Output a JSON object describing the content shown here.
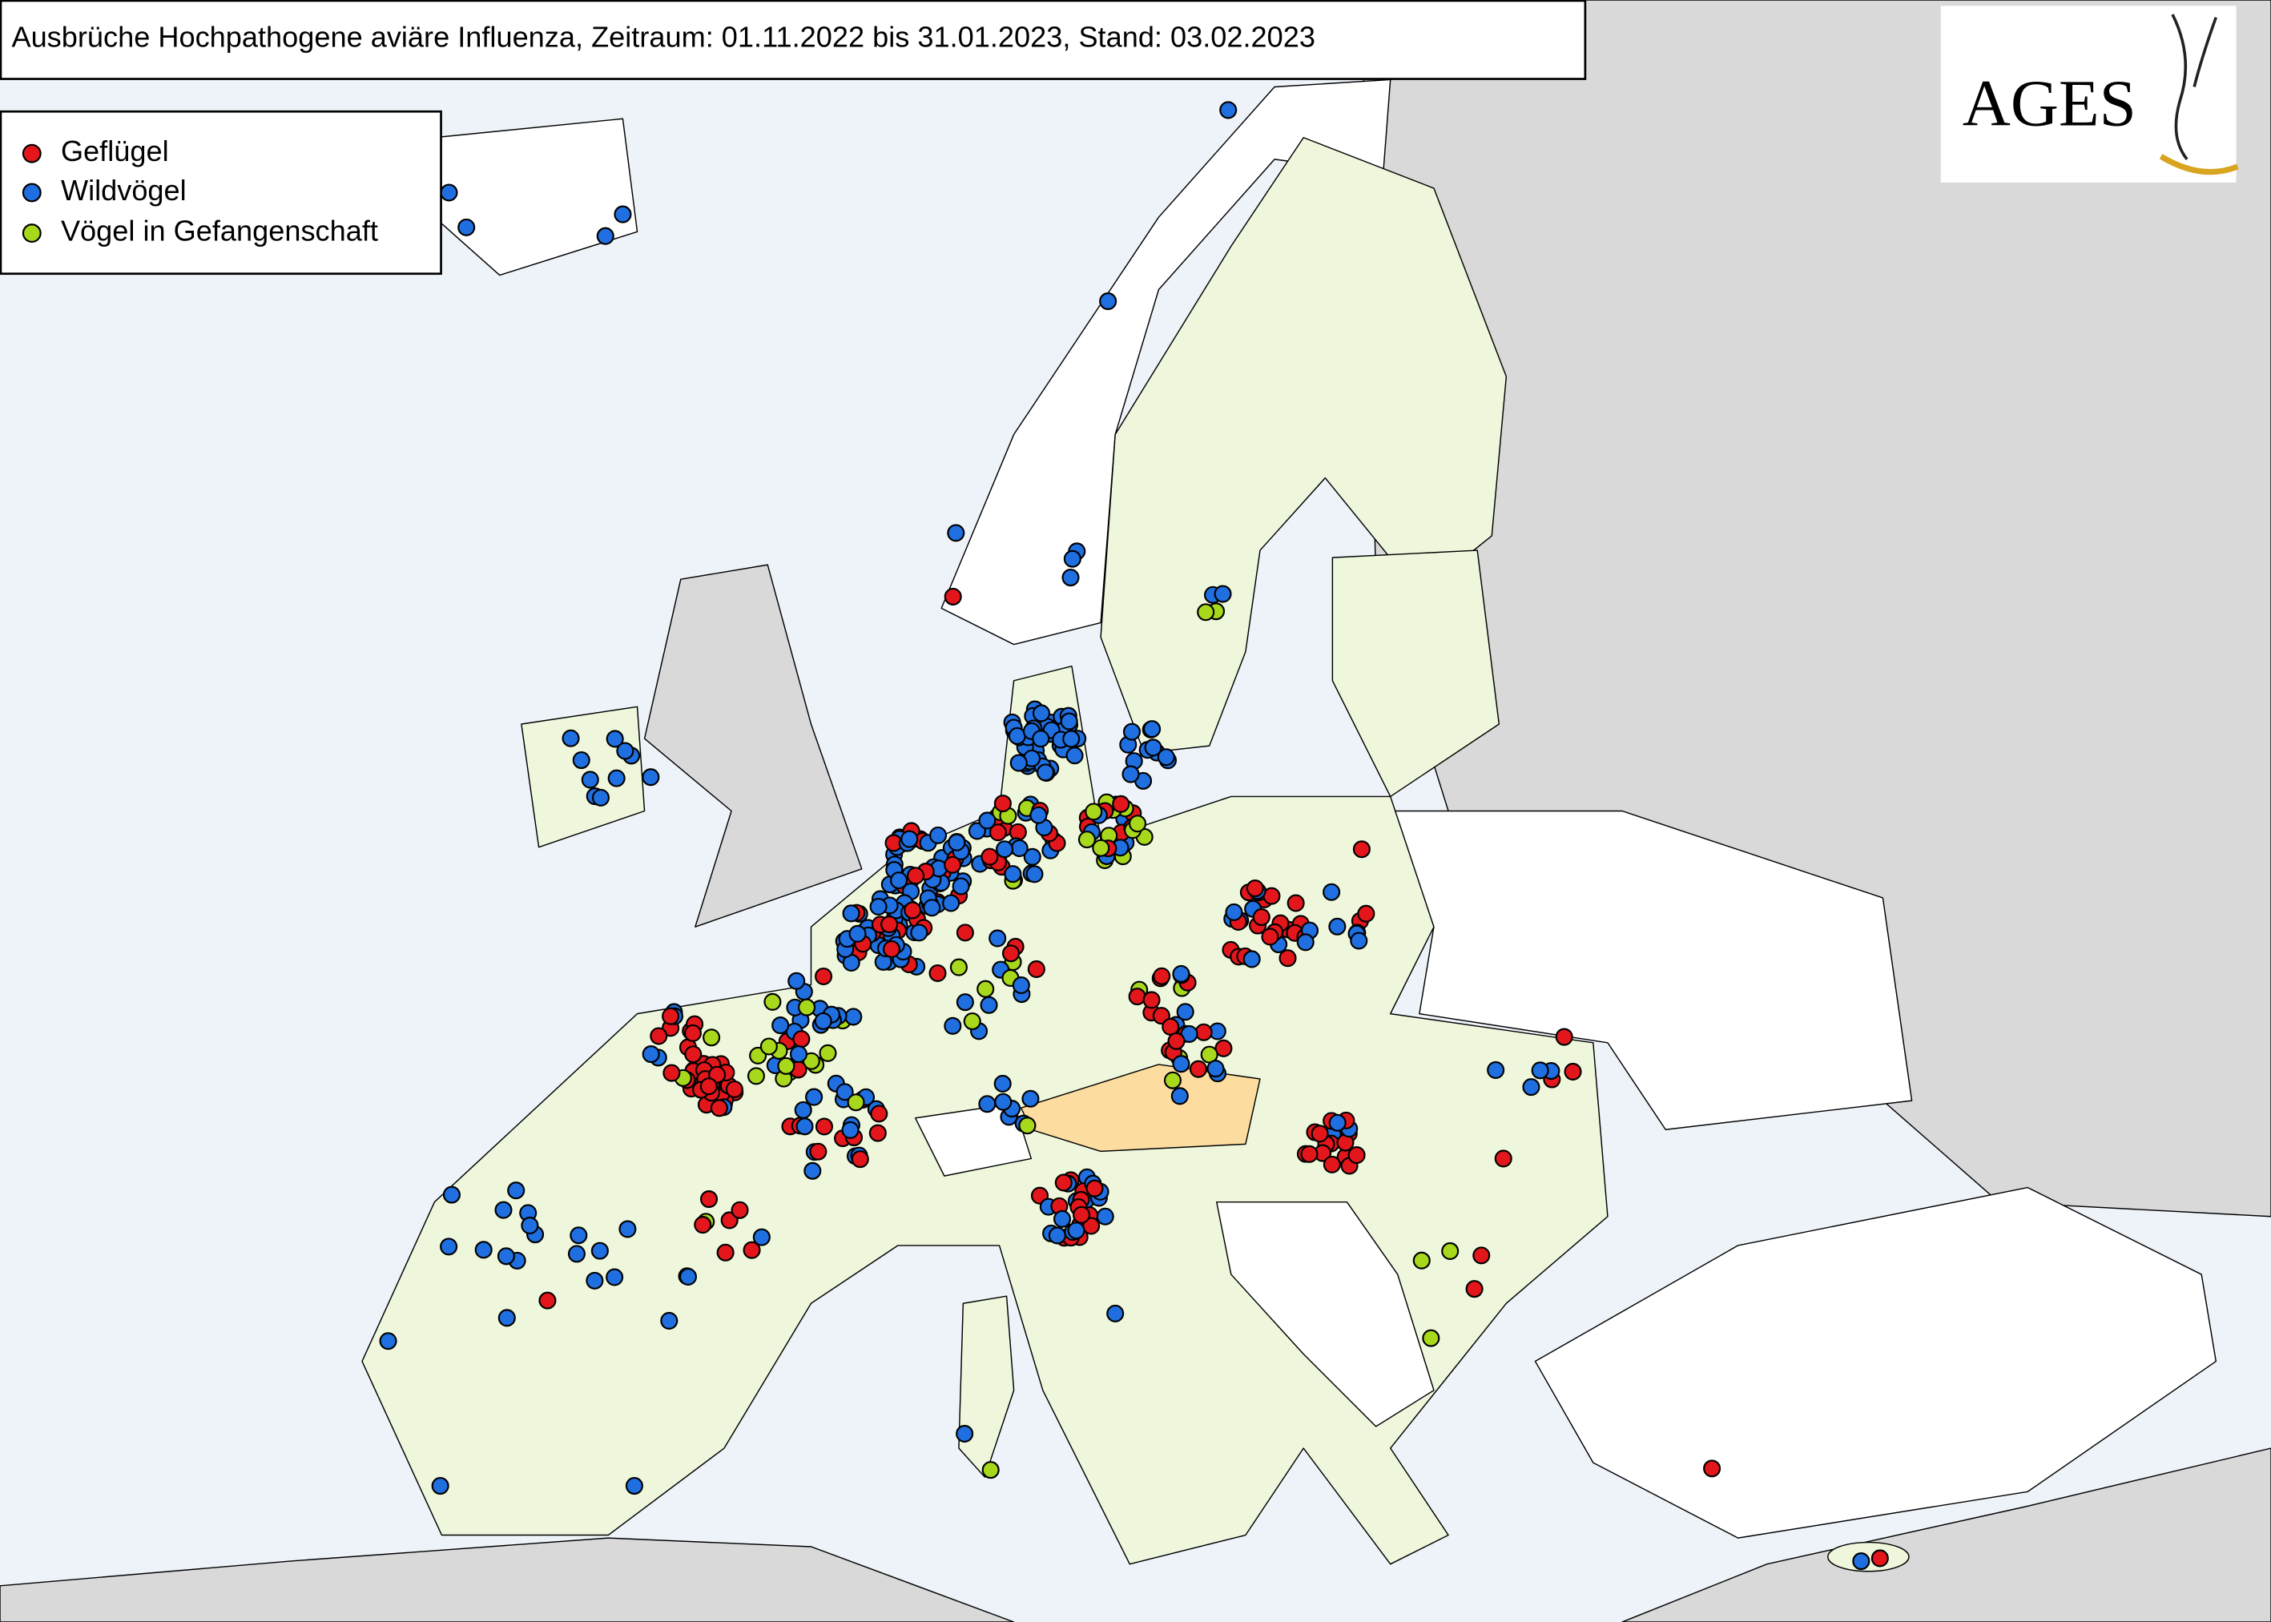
{
  "header": {
    "title": "Ausbrüche Hochpathogene aviäre Influenza, Zeitraum: 01.11.2022 bis 31.01.2023, Stand: 03.02.2023"
  },
  "legend": {
    "items": [
      "Geflügel",
      "Wildvögel",
      "Vögel in Gefangenschaft"
    ]
  },
  "logo": {
    "text": "AGES"
  }
}
